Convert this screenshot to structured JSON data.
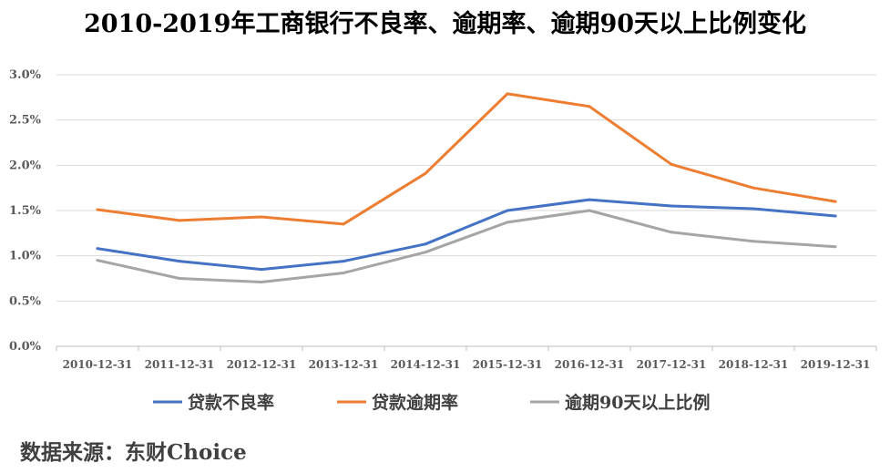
{
  "chart_data": {
    "type": "line",
    "title": "2010-2019年工商银行不良率、逾期率、逾期90天以上比例变化",
    "categories": [
      "2010-12-31",
      "2011-12-31",
      "2012-12-31",
      "2013-12-31",
      "2014-12-31",
      "2015-12-31",
      "2016-12-31",
      "2017-12-31",
      "2018-12-31",
      "2019-12-31"
    ],
    "series": [
      {
        "name": "贷款不良率",
        "color": "#4472C4",
        "values": [
          1.08,
          0.94,
          0.85,
          0.94,
          1.13,
          1.5,
          1.62,
          1.55,
          1.52,
          1.44
        ]
      },
      {
        "name": "贷款逾期率",
        "color": "#ED7D31",
        "values": [
          1.51,
          1.39,
          1.43,
          1.35,
          1.91,
          2.79,
          2.65,
          2.01,
          1.75,
          1.6
        ]
      },
      {
        "name": "逾期90天以上比例",
        "color": "#A5A5A5",
        "values": [
          0.95,
          0.75,
          0.71,
          0.81,
          1.04,
          1.37,
          1.5,
          1.26,
          1.16,
          1.1
        ]
      }
    ],
    "yticks": [
      "0.0%",
      "0.5%",
      "1.0%",
      "1.5%",
      "2.0%",
      "2.5%",
      "3.0%"
    ],
    "ylim": [
      0,
      3.0
    ],
    "grid": true,
    "legend": "bottom"
  },
  "source": "数据来源：东财Choice"
}
